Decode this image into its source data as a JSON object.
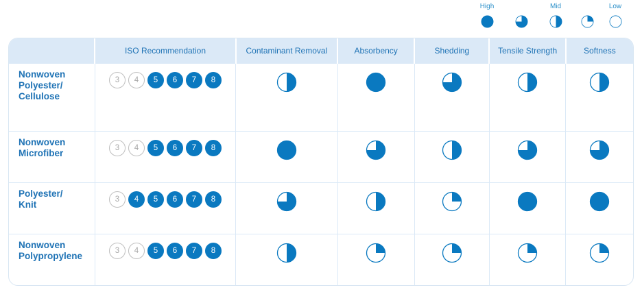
{
  "legend": [
    {
      "label": "High",
      "level": 1.0
    },
    {
      "label": "",
      "level": 0.75
    },
    {
      "label": "Mid",
      "level": 0.5
    },
    {
      "label": "",
      "level": 0.25
    },
    {
      "label": "Low",
      "level": 0.0
    }
  ],
  "headers": [
    "",
    "ISO Recommendation",
    "Contaminant Removal",
    "Absorbency",
    "Shedding",
    "Tensile Strength",
    "Softness"
  ],
  "rows": [
    {
      "name": "Nonwoven Polyester/ Cellulose",
      "name_lines": [
        "Nonwoven",
        "Polyester/",
        "Cellulose"
      ],
      "iso": [
        {
          "n": "3",
          "on": false
        },
        {
          "n": "4",
          "on": false
        },
        {
          "n": "5",
          "on": true
        },
        {
          "n": "6",
          "on": true
        },
        {
          "n": "7",
          "on": true
        },
        {
          "n": "8",
          "on": true
        }
      ],
      "ratings": [
        0.5,
        1.0,
        0.75,
        0.5,
        0.5
      ]
    },
    {
      "name": "Nonwoven Microfiber",
      "name_lines": [
        "Nonwoven",
        "Microfiber"
      ],
      "iso": [
        {
          "n": "3",
          "on": false
        },
        {
          "n": "4",
          "on": false
        },
        {
          "n": "5",
          "on": true
        },
        {
          "n": "6",
          "on": true
        },
        {
          "n": "7",
          "on": true
        },
        {
          "n": "8",
          "on": true
        }
      ],
      "ratings": [
        1.0,
        0.75,
        0.5,
        0.75,
        0.75
      ]
    },
    {
      "name": "Polyester/ Knit",
      "name_lines": [
        "Polyester/",
        "Knit"
      ],
      "iso": [
        {
          "n": "3",
          "on": false
        },
        {
          "n": "4",
          "on": true
        },
        {
          "n": "5",
          "on": true
        },
        {
          "n": "6",
          "on": true
        },
        {
          "n": "7",
          "on": true
        },
        {
          "n": "8",
          "on": true
        }
      ],
      "ratings": [
        0.75,
        0.5,
        0.25,
        1.0,
        1.0
      ]
    },
    {
      "name": "Nonwoven Polypropylene",
      "name_lines": [
        "Nonwoven",
        "Polypropylene"
      ],
      "iso": [
        {
          "n": "3",
          "on": false
        },
        {
          "n": "4",
          "on": false
        },
        {
          "n": "5",
          "on": true
        },
        {
          "n": "6",
          "on": true
        },
        {
          "n": "7",
          "on": true
        },
        {
          "n": "8",
          "on": true
        }
      ],
      "ratings": [
        0.5,
        0.25,
        0.25,
        0.25,
        0.25
      ]
    }
  ],
  "colors": {
    "accent": "#0a79c0",
    "header_bg": "#dbe9f7",
    "header_text": "#1f73b5",
    "legend_text": "#2a8fc9",
    "iso_off_text": "#a8a8a8"
  }
}
